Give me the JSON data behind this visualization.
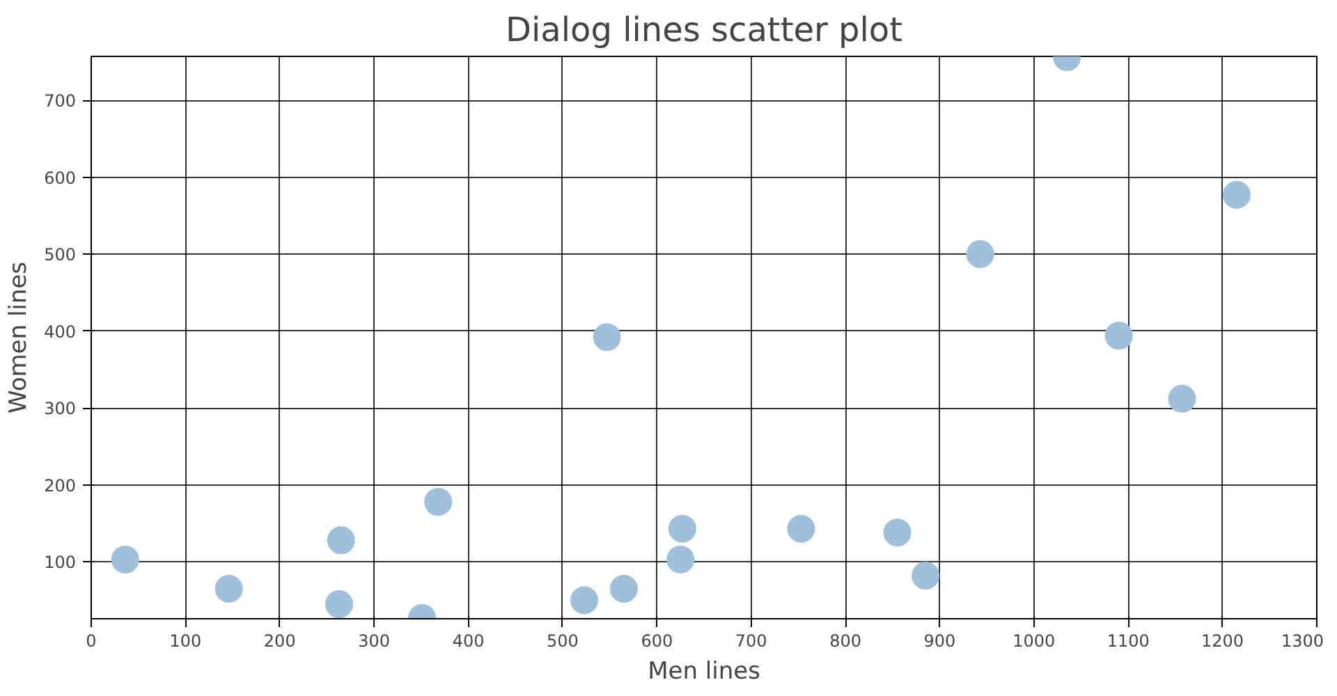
{
  "chart_data": {
    "type": "scatter",
    "title": "Dialog lines scatter plot",
    "xlabel": "Men lines",
    "ylabel": "Women lines",
    "x": [
      36,
      146,
      263,
      265,
      351,
      368,
      547,
      523,
      565,
      625,
      627,
      753,
      855,
      885,
      943,
      1035,
      1090,
      1157,
      1215
    ],
    "series": [
      {
        "color": "#a0bfdc",
        "values": [
          103,
          65,
          45,
          128,
          27,
          178,
          392,
          50,
          65,
          103,
          143,
          143,
          138,
          82,
          500,
          756,
          394,
          312,
          577
        ]
      }
    ],
    "xlim": [
      0,
      1300
    ],
    "ylim": [
      26,
      757
    ],
    "xticks": [
      0,
      100,
      200,
      300,
      400,
      500,
      600,
      700,
      800,
      900,
      1000,
      1100,
      1200,
      1300
    ],
    "yticks": [
      100,
      200,
      300,
      400,
      500,
      600,
      700
    ],
    "grid": true,
    "marker": "circle"
  }
}
